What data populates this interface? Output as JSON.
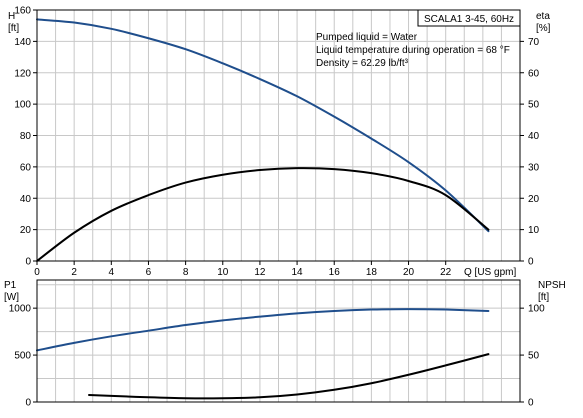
{
  "title_box": "SCALA1 3-45, 60Hz",
  "info_lines": [
    "Pumped liquid = Water",
    "Liquid temperature during operation = 68 °F",
    "Density = 62.29 lb/ft³"
  ],
  "colors": {
    "blue": "#1f4e8c",
    "black": "#000000",
    "grid": "#c8c8c8"
  },
  "chart_data": [
    {
      "type": "line",
      "name": "top-chart",
      "xlabel": "Q [US gpm]",
      "xlim": [
        0,
        26
      ],
      "x_ticks": [
        0,
        2,
        4,
        6,
        8,
        10,
        12,
        14,
        16,
        18,
        20,
        22
      ],
      "left_axis": {
        "label_line1": "H",
        "label_line2": "[ft]",
        "lim": [
          0,
          160
        ],
        "ticks": [
          0,
          20,
          40,
          60,
          80,
          100,
          120,
          140,
          160
        ]
      },
      "right_axis": {
        "label_line1": "eta",
        "label_line2": "[%]",
        "lim": [
          0,
          80
        ],
        "ticks": [
          0,
          10,
          20,
          30,
          40,
          50,
          60,
          70
        ]
      },
      "grid": true,
      "series": [
        {
          "axis": "left",
          "color": "blue",
          "x": [
            0,
            2,
            4,
            6,
            8,
            10,
            12,
            14,
            16,
            18,
            20,
            22,
            24.3
          ],
          "y": [
            154,
            152,
            148,
            142,
            135,
            126,
            116,
            105,
            92,
            78,
            63,
            45,
            19
          ]
        },
        {
          "axis": "right",
          "color": "black",
          "x": [
            0,
            2,
            4,
            6,
            8,
            10,
            12,
            14,
            16,
            18,
            20,
            22,
            24.3
          ],
          "y": [
            0,
            9,
            16,
            21,
            25,
            27.5,
            29,
            29.6,
            29.3,
            28,
            25.5,
            21,
            10
          ]
        }
      ]
    },
    {
      "type": "line",
      "name": "bottom-chart",
      "xlim": [
        0,
        26
      ],
      "left_axis": {
        "label_line1": "P1",
        "label_line2": "[W]",
        "lim": [
          0,
          1300
        ],
        "ticks": [
          0,
          500,
          1000
        ]
      },
      "right_axis": {
        "label_line1": "NPSH",
        "label_line2": "[ft]",
        "lim": [
          0,
          130
        ],
        "ticks": [
          0,
          50,
          100
        ]
      },
      "grid": true,
      "series": [
        {
          "axis": "left",
          "color": "blue",
          "x": [
            0,
            2,
            4,
            6,
            8,
            10,
            12,
            14,
            16,
            18,
            20,
            22,
            24.3
          ],
          "y": [
            550,
            630,
            700,
            760,
            820,
            870,
            910,
            945,
            970,
            985,
            990,
            985,
            970
          ]
        },
        {
          "axis": "right",
          "color": "black",
          "x": [
            2.8,
            4,
            6,
            8,
            10,
            12,
            14,
            16,
            18,
            20,
            22,
            24.3
          ],
          "y": [
            7.5,
            6.5,
            5,
            4,
            4,
            5,
            8,
            13,
            20,
            29,
            39,
            51
          ]
        }
      ]
    }
  ]
}
